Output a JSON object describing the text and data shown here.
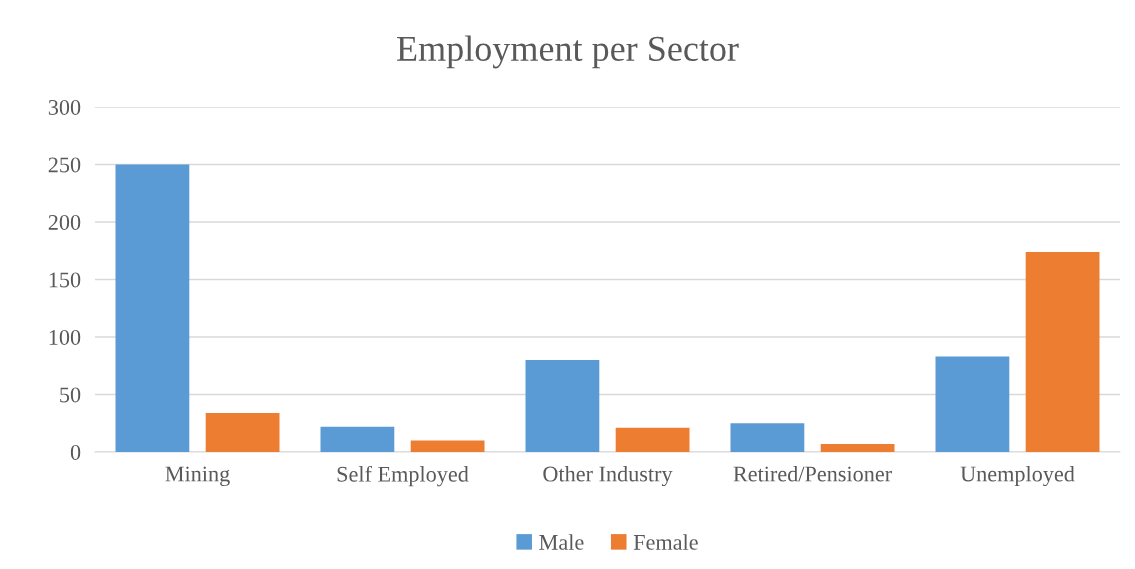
{
  "chart_data": {
    "type": "bar",
    "title": "Employment per Sector",
    "categories": [
      "Mining",
      "Self Employed",
      "Other Industry",
      "Retired/Pensioner",
      "Unemployed"
    ],
    "series": [
      {
        "name": "Male",
        "color": "#5b9bd5",
        "values": [
          250,
          22,
          80,
          25,
          83
        ]
      },
      {
        "name": "Female",
        "color": "#ed7d31",
        "values": [
          34,
          10,
          21,
          7,
          174
        ]
      }
    ],
    "ylim": [
      0,
      300
    ],
    "yticks": [
      0,
      50,
      100,
      150,
      200,
      250,
      300
    ],
    "grid": "y",
    "legend": "bottom"
  }
}
